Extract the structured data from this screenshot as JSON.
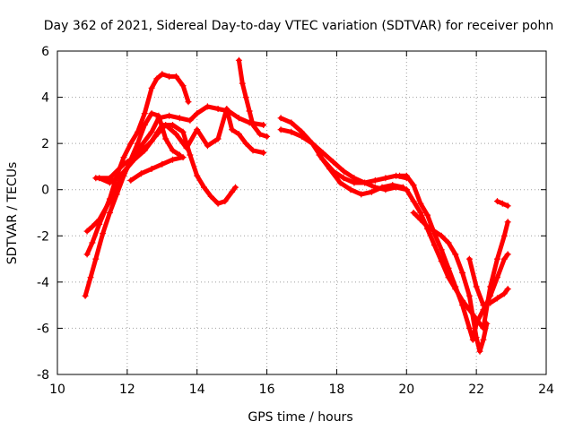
{
  "chart_data": {
    "type": "scatter",
    "title": "Day 362 of 2021, Sidereal Day-to-day VTEC variation (SDTVAR) for receiver pohn",
    "xlabel": "GPS time / hours",
    "ylabel": "SDTVAR / TECUs",
    "xlim": [
      10,
      24
    ],
    "ylim": [
      -8,
      6
    ],
    "xticks": [
      10,
      12,
      14,
      16,
      18,
      20,
      22,
      24
    ],
    "yticks": [
      -8,
      -6,
      -4,
      -2,
      0,
      2,
      4,
      6
    ],
    "grid": true,
    "marker": "+",
    "color": "#ff0000",
    "series": [
      {
        "name": "track-1",
        "x": [
          10.8,
          10.95,
          11.1,
          11.3,
          11.5,
          11.7,
          11.9,
          12.1,
          12.3,
          12.5,
          12.7,
          12.9,
          13.1,
          13.3,
          13.5
        ],
        "y": [
          -4.6,
          -3.8,
          -3.0,
          -1.9,
          -1.0,
          -0.2,
          0.6,
          1.3,
          2.0,
          2.8,
          3.3,
          3.2,
          2.2,
          1.7,
          1.5
        ]
      },
      {
        "name": "track-2",
        "x": [
          10.85,
          11.0,
          11.2,
          11.5,
          11.7,
          11.9,
          12.1,
          12.3,
          12.5,
          12.7,
          12.85,
          13.0,
          13.2,
          13.4,
          13.6,
          13.75
        ],
        "y": [
          -2.8,
          -2.3,
          -1.5,
          -0.4,
          0.6,
          1.4,
          2.0,
          2.5,
          3.3,
          4.4,
          4.8,
          5.0,
          4.9,
          4.9,
          4.5,
          3.8
        ]
      },
      {
        "name": "track-3",
        "x": [
          10.85,
          11.0,
          11.2,
          11.5,
          11.8,
          12.1,
          12.4,
          12.7,
          12.9,
          13.2,
          13.5,
          13.8,
          14.0,
          14.3,
          14.6,
          14.9,
          15.2,
          15.5,
          15.9
        ],
        "y": [
          -1.8,
          -1.6,
          -1.3,
          -0.5,
          0.4,
          1.2,
          1.9,
          2.5,
          3.1,
          3.2,
          3.1,
          3.0,
          3.3,
          3.6,
          3.5,
          3.4,
          3.1,
          2.9,
          2.8
        ]
      },
      {
        "name": "track-4",
        "x": [
          11.2,
          11.5,
          11.8,
          12.2,
          12.5,
          12.8,
          13.1,
          13.4,
          13.7,
          14.0,
          14.3,
          14.6,
          14.85,
          15.0,
          15.2,
          15.4,
          15.6,
          15.9
        ],
        "y": [
          0.5,
          0.3,
          0.6,
          1.3,
          1.7,
          2.3,
          2.8,
          2.4,
          1.8,
          2.6,
          1.9,
          2.2,
          3.5,
          2.6,
          2.4,
          2.0,
          1.7,
          1.6
        ]
      },
      {
        "name": "track-5",
        "x": [
          11.1,
          11.5,
          11.9,
          12.3,
          12.7,
          13.0,
          13.3,
          13.6,
          13.8,
          14.0,
          14.2,
          14.4,
          14.6,
          14.8,
          15.0,
          15.1
        ],
        "y": [
          0.5,
          0.5,
          1.1,
          1.5,
          2.1,
          2.8,
          2.8,
          2.5,
          1.5,
          0.6,
          0.1,
          -0.3,
          -0.6,
          -0.5,
          -0.1,
          0.1
        ]
      },
      {
        "name": "track-6",
        "x": [
          12.1,
          12.4,
          12.7,
          13.0,
          13.3,
          13.6
        ],
        "y": [
          0.4,
          0.7,
          0.9,
          1.1,
          1.3,
          1.4
        ]
      },
      {
        "name": "track-7",
        "x": [
          15.2,
          15.3,
          15.4,
          15.5,
          15.6,
          15.8,
          16.0
        ],
        "y": [
          5.6,
          4.6,
          4.0,
          3.4,
          2.8,
          2.4,
          2.3
        ]
      },
      {
        "name": "track-8",
        "x": [
          16.4,
          16.7,
          17.0,
          17.3,
          17.6,
          17.9,
          18.2,
          18.5,
          18.8,
          19.1,
          19.4,
          19.7,
          20.0
        ],
        "y": [
          3.1,
          2.9,
          2.5,
          2.0,
          1.3,
          0.8,
          0.5,
          0.3,
          0.3,
          0.4,
          0.5,
          0.6,
          0.5
        ]
      },
      {
        "name": "track-9",
        "x": [
          16.4,
          16.7,
          17.0,
          17.3,
          17.6,
          17.9,
          18.2,
          18.5,
          18.8,
          19.1,
          19.4,
          19.7,
          20.0
        ],
        "y": [
          2.6,
          2.5,
          2.3,
          2.0,
          1.6,
          1.2,
          0.8,
          0.5,
          0.3,
          0.1,
          0.0,
          0.1,
          0.0
        ]
      },
      {
        "name": "track-10",
        "x": [
          17.5,
          17.8,
          18.1,
          18.4,
          18.7,
          19.0,
          19.3,
          19.6,
          19.9
        ],
        "y": [
          1.5,
          0.9,
          0.3,
          0.0,
          -0.2,
          -0.1,
          0.1,
          0.2,
          0.1
        ]
      },
      {
        "name": "track-11",
        "x": [
          19.8,
          20.0,
          20.2,
          20.4,
          20.6,
          20.8,
          21.0,
          21.2,
          21.4,
          21.6,
          21.8,
          21.9,
          22.0,
          22.2,
          22.4,
          22.6,
          22.8,
          22.9
        ],
        "y": [
          0.6,
          0.6,
          0.2,
          -0.6,
          -1.1,
          -1.9,
          -2.6,
          -3.4,
          -4.2,
          -5.0,
          -6.0,
          -6.5,
          -5.8,
          -5.2,
          -4.6,
          -3.8,
          -3.0,
          -2.8
        ]
      },
      {
        "name": "track-12",
        "x": [
          20.0,
          20.2,
          20.4,
          20.6,
          20.8,
          21.0,
          21.2,
          21.4,
          21.6,
          21.8,
          22.0,
          22.2,
          22.4,
          22.6,
          22.8,
          22.9
        ],
        "y": [
          0.0,
          -0.5,
          -1.0,
          -1.7,
          -2.4,
          -3.1,
          -3.8,
          -4.3,
          -4.8,
          -5.2,
          -5.6,
          -6.0,
          -4.2,
          -3.0,
          -2.0,
          -1.4
        ]
      },
      {
        "name": "track-13",
        "x": [
          20.2,
          20.4,
          20.6,
          20.8,
          21.0,
          21.2,
          21.4,
          21.6,
          21.8,
          22.0,
          22.1,
          22.2,
          22.3
        ],
        "y": [
          -1.0,
          -1.3,
          -1.6,
          -1.8,
          -2.0,
          -2.3,
          -2.8,
          -3.6,
          -4.6,
          -6.4,
          -7.0,
          -6.5,
          -5.8
        ]
      },
      {
        "name": "track-14",
        "x": [
          21.8,
          22.0,
          22.2,
          22.4,
          22.6,
          22.8,
          22.9
        ],
        "y": [
          -3.0,
          -4.2,
          -5.0,
          -4.9,
          -4.7,
          -4.5,
          -4.3
        ]
      },
      {
        "name": "track-15",
        "x": [
          22.6,
          22.75,
          22.9
        ],
        "y": [
          -0.5,
          -0.6,
          -0.7
        ]
      }
    ]
  }
}
